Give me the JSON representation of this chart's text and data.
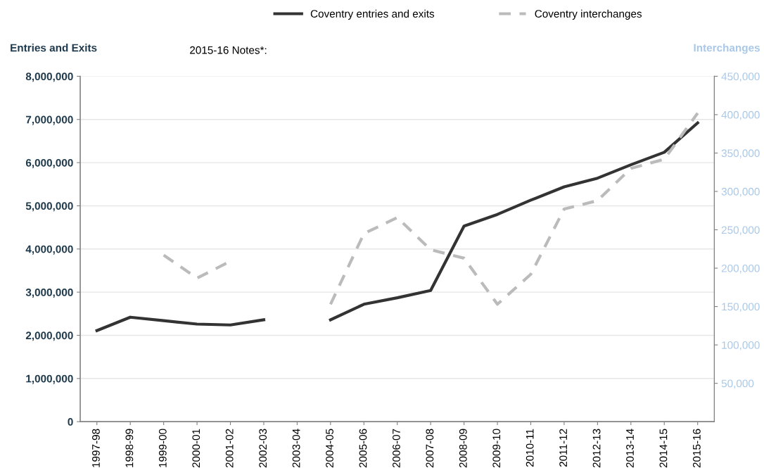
{
  "chart_data": {
    "type": "line",
    "categories": [
      "1997-98",
      "1998-99",
      "1999-00",
      "2000-01",
      "2001-02",
      "2002-03",
      "2003-04",
      "2004-05",
      "2005-06",
      "2006-07",
      "2007-08",
      "2008-09",
      "2009-10",
      "2010-11",
      "2011-12",
      "2012-13",
      "2013-14",
      "2014-15",
      "2015-16"
    ],
    "series": [
      {
        "name": "Coventry entries and exits",
        "color": "#333333",
        "line_style": "solid",
        "values": [
          2110000,
          2420000,
          2340000,
          2260000,
          2240000,
          2360000,
          null,
          2360000,
          2720000,
          2870000,
          3040000,
          4530000,
          4800000,
          5130000,
          5440000,
          5640000,
          5950000,
          6240000,
          6920000
        ]
      },
      {
        "name": "Coventry interchanges",
        "color": "#bbbbbb",
        "line_style": "dashed",
        "axis": "y2",
        "values": [
          null,
          null,
          217000,
          187000,
          209000,
          null,
          null,
          153000,
          245000,
          266000,
          224000,
          213000,
          153000,
          192000,
          277000,
          288000,
          330000,
          342000,
          402000
        ]
      }
    ],
    "ylabel": "Entries and Exits",
    "y2label": "Interchanges",
    "ylim": [
      0,
      8000000
    ],
    "yticks": [
      {
        "value": 0,
        "label": "0"
      },
      {
        "value": 1000000,
        "label": "1,000,000"
      },
      {
        "value": 2000000,
        "label": "2,000,000"
      },
      {
        "value": 3000000,
        "label": "3,000,000"
      },
      {
        "value": 4000000,
        "label": "4,000,000"
      },
      {
        "value": 5000000,
        "label": "5,000,000"
      },
      {
        "value": 6000000,
        "label": "6,000,000"
      },
      {
        "value": 7000000,
        "label": "7,000,000"
      },
      {
        "value": 8000000,
        "label": "8,000,000"
      }
    ],
    "y2lim": [
      0,
      450000
    ],
    "y2ticks": [
      {
        "value": 50000,
        "label": "50,000"
      },
      {
        "value": 100000,
        "label": "100,000"
      },
      {
        "value": 150000,
        "label": "150,000"
      },
      {
        "value": 200000,
        "label": "200,000"
      },
      {
        "value": 250000,
        "label": "250,000"
      },
      {
        "value": 300000,
        "label": "300,000"
      },
      {
        "value": 350000,
        "label": "350,000"
      },
      {
        "value": 400000,
        "label": "400,000"
      },
      {
        "value": 450000,
        "label": "450,000"
      }
    ],
    "annotations": [
      "2015-16 Notes*:"
    ],
    "grid": "y",
    "legend": "top"
  }
}
